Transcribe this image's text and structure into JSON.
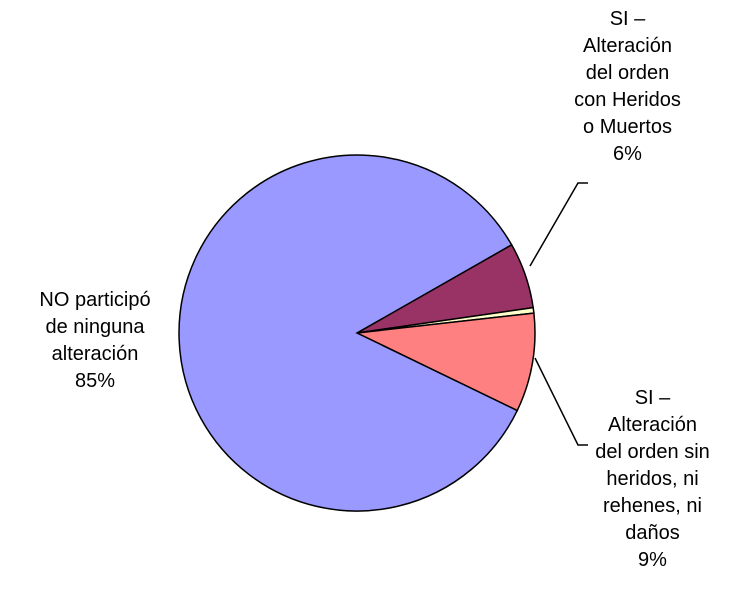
{
  "chart_data": {
    "type": "pie",
    "categories": [
      "SI –\nAlteración\ndel orden\ncon Heridos\no Muertos",
      null,
      "SI –\nAlteración\ndel orden sin\nheridos, ni\nrehenes, ni\ndaños",
      "NO participó\nde ninguna\nalteración"
    ],
    "values": [
      6,
      0.5,
      9,
      85
    ],
    "value_labels": [
      "6%",
      null,
      "9%",
      "85%"
    ],
    "colors": [
      "#993366",
      "#ffffcc",
      "#ff8080",
      "#9999ff"
    ]
  }
}
